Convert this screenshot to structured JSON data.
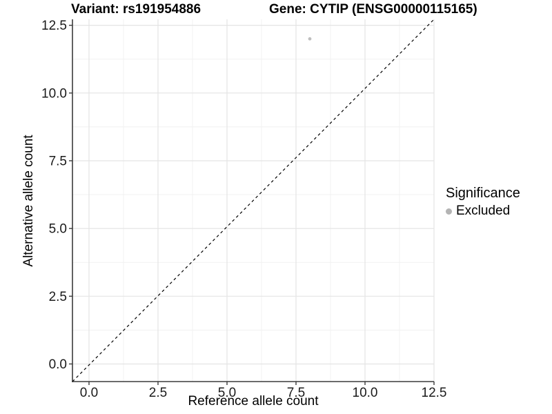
{
  "titles": {
    "variant": "Variant: rs191954886",
    "gene": "Gene: CYTIP (ENSG00000115165)"
  },
  "chart_data": {
    "type": "scatter",
    "title_left": "Variant: rs191954886",
    "title_right": "Gene: CYTIP (ENSG00000115165)",
    "xlabel": "Reference allele count",
    "ylabel": "Alternative allele count",
    "xlim": [
      -0.6,
      12.5
    ],
    "ylim": [
      -0.65,
      12.72
    ],
    "x_ticks": [
      0,
      2.5,
      5,
      7.5,
      10,
      12.5
    ],
    "y_ticks": [
      0,
      2.5,
      5,
      7.5,
      10,
      12.5
    ],
    "x_tick_labels": [
      "0.0",
      "2.5",
      "5.0",
      "7.5",
      "10.0",
      "12.5"
    ],
    "y_tick_labels": [
      "0.0",
      "2.5",
      "5.0",
      "7.5",
      "10.0",
      "12.5"
    ],
    "x_minor_ticks": [
      1.25,
      3.75,
      6.25,
      8.75,
      11.25
    ],
    "y_minor_ticks": [
      1.25,
      3.75,
      6.25,
      8.75,
      11.25
    ],
    "grid": "major+minor",
    "identity_line": {
      "equation": "y = x",
      "style": "dashed",
      "color": "#000000"
    },
    "series": [
      {
        "name": "Excluded",
        "color": "#bebebe",
        "points": [
          {
            "x": 8,
            "y": 12
          }
        ]
      }
    ],
    "legend": {
      "title": "Significance",
      "position": "right",
      "items": [
        {
          "label": "Excluded",
          "color": "#b4b4b4"
        }
      ]
    }
  },
  "style": {
    "background": "#ffffff",
    "grid_major_color": "#e4e4e4",
    "grid_minor_color": "#f1f1f1",
    "axis_color": "#3a3a3a",
    "tick_label_color": "#1a1a1a",
    "title_color": "#000000"
  }
}
